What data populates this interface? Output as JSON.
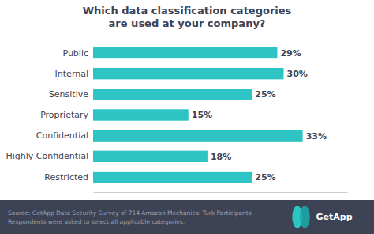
{
  "chart_data": {
    "type": "bar",
    "orientation": "horizontal",
    "title": "Which data classification categories\nare used at your company?",
    "categories": [
      "Public",
      "Internal",
      "Sensitive",
      "Proprietary",
      "Confidential",
      "Highly Confidential",
      "Restricted"
    ],
    "values": [
      29,
      30,
      25,
      15,
      33,
      18,
      25
    ],
    "value_labels": [
      "29%",
      "30%",
      "25%",
      "15%",
      "33%",
      "18%",
      "25%"
    ],
    "data_labels": true,
    "color": "#2EC4C4",
    "xlim": [
      0,
      40
    ],
    "tick_labels": "y",
    "grid": false,
    "annotations": [
      "Source: GetApp Data Security Survey of 714 Amazon Mechanical Turk Participants\nRespondents were asked to select all applicable categories.",
      "GetApp"
    ]
  }
}
